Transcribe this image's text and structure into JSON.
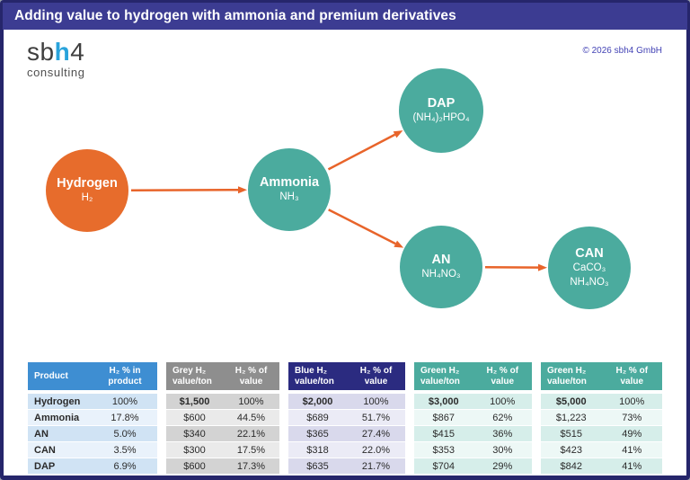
{
  "header": {
    "title": "Adding value to hydrogen with ammonia and premium derivatives",
    "copyright": "© 2026 sbh4 GmbH"
  },
  "logo": {
    "sb": "sb",
    "h": "h",
    "four": "4",
    "subtitle": "consulting"
  },
  "colors": {
    "titlebar": "#3c3c92",
    "frame_border": "#26266b",
    "orange": "#e76c2c",
    "teal": "#4bab9e",
    "arrow": "#e8642a",
    "copyright_blue": "#4343b5"
  },
  "diagram": {
    "nodes": [
      {
        "id": "hydrogen",
        "label": "Hydrogen",
        "formulas": [
          "H₂"
        ],
        "color": "#e76c2c"
      },
      {
        "id": "ammonia",
        "label": "Ammonia",
        "formulas": [
          "NH₃"
        ],
        "color": "#4bab9e"
      },
      {
        "id": "dap",
        "label": "DAP",
        "formulas": [
          "(NH₄)₂HPO₄"
        ],
        "color": "#4bab9e"
      },
      {
        "id": "an",
        "label": "AN",
        "formulas": [
          "NH₄NO₃"
        ],
        "color": "#4bab9e"
      },
      {
        "id": "can",
        "label": "CAN",
        "formulas": [
          "CaCO₃",
          "NH₄NO₃"
        ],
        "color": "#4bab9e"
      }
    ],
    "edges": [
      {
        "from": "hydrogen",
        "to": "ammonia"
      },
      {
        "from": "ammonia",
        "to": "dap"
      },
      {
        "from": "ammonia",
        "to": "an"
      },
      {
        "from": "an",
        "to": "can"
      }
    ]
  },
  "table": {
    "groups": [
      {
        "id": "product",
        "header_color": "#3e8ed2",
        "stripe_odd": "#d0e3f4",
        "stripe_even": "#e9f2fb",
        "col1": "Product",
        "col2": "H₂ % in\nproduct"
      },
      {
        "id": "grey-h2",
        "header_color": "#8e8e8e",
        "stripe_odd": "#d3d3d3",
        "stripe_even": "#eaeaea",
        "col1": "Grey H₂\nvalue/ton",
        "col2": "H₂ % of\nvalue"
      },
      {
        "id": "blue-h2",
        "header_color": "#2b2b80",
        "stripe_odd": "#d9d9ec",
        "stripe_even": "#ebebf6",
        "col1": "Blue H₂\nvalue/ton",
        "col2": "H₂ % of\nvalue"
      },
      {
        "id": "green-h2-1",
        "header_color": "#4bab9e",
        "stripe_odd": "#d6eeea",
        "stripe_even": "#edf8f6",
        "col1": "Green H₂\nvalue/ton",
        "col2": "H₂ % of\nvalue"
      },
      {
        "id": "green-h2-2",
        "header_color": "#4bab9e",
        "stripe_odd": "#d6eeea",
        "stripe_even": "#edf8f6",
        "col1": "Green H₂\nvalue/ton",
        "col2": "H₂ % of\nvalue"
      }
    ],
    "rows": [
      [
        "Hydrogen",
        "100%",
        "$1,500",
        "100%",
        "$2,000",
        "100%",
        "$3,000",
        "100%",
        "$5,000",
        "100%"
      ],
      [
        "Ammonia",
        "17.8%",
        "$600",
        "44.5%",
        "$689",
        "51.7%",
        "$867",
        "62%",
        "$1,223",
        "73%"
      ],
      [
        "AN",
        "5.0%",
        "$340",
        "22.1%",
        "$365",
        "27.4%",
        "$415",
        "36%",
        "$515",
        "49%"
      ],
      [
        "CAN",
        "3.5%",
        "$300",
        "17.5%",
        "$318",
        "22.0%",
        "$353",
        "30%",
        "$423",
        "41%"
      ],
      [
        "DAP",
        "6.9%",
        "$600",
        "17.3%",
        "$635",
        "21.7%",
        "$704",
        "29%",
        "$842",
        "41%"
      ]
    ],
    "bold_value_row": 0
  }
}
